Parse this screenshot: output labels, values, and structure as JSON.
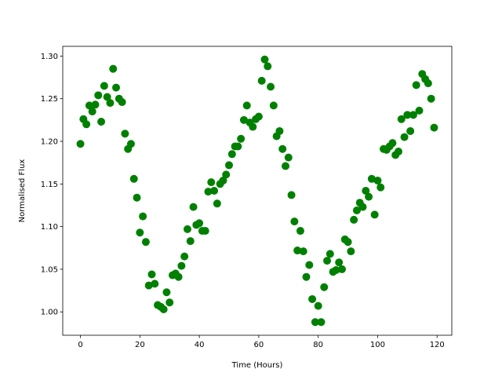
{
  "chart_data": {
    "type": "scatter",
    "title": "",
    "xlabel": "Time (Hours)",
    "ylabel": "Normalised Flux",
    "xlim": [
      -5.95,
      124.95
    ],
    "ylim": [
      0.9726,
      1.3114
    ],
    "xticks": [
      0,
      20,
      40,
      60,
      80,
      100,
      120
    ],
    "xtick_labels": [
      "0",
      "20",
      "40",
      "60",
      "80",
      "100",
      "120"
    ],
    "yticks": [
      1.0,
      1.05,
      1.1,
      1.15,
      1.2,
      1.25,
      1.3
    ],
    "ytick_labels": [
      "1.00",
      "1.05",
      "1.10",
      "1.15",
      "1.20",
      "1.25",
      "1.30"
    ],
    "grid": false,
    "marker_color": "#008000",
    "x": [
      0,
      1,
      2,
      3,
      4,
      5,
      6,
      7,
      8,
      9,
      10,
      11,
      12,
      13,
      14,
      15,
      16,
      17,
      18,
      19,
      20,
      21,
      22,
      23,
      24,
      25,
      26,
      27,
      28,
      29,
      30,
      31,
      32,
      33,
      34,
      35,
      36,
      37,
      38,
      39,
      40,
      41,
      42,
      43,
      44,
      45,
      46,
      47,
      48,
      49,
      50,
      51,
      52,
      53,
      54,
      55,
      56,
      57,
      58,
      59,
      60,
      61,
      62,
      63,
      64,
      65,
      66,
      67,
      68,
      69,
      70,
      71,
      72,
      73,
      74,
      75,
      76,
      77,
      78,
      79,
      80,
      81,
      82,
      83,
      84,
      85,
      86,
      87,
      88,
      89,
      90,
      91,
      92,
      93,
      94,
      95,
      96,
      97,
      98,
      99,
      100,
      101,
      102,
      103,
      104,
      105,
      106,
      107,
      108,
      109,
      110,
      111,
      112,
      113,
      114,
      115,
      116,
      117,
      118,
      119
    ],
    "y": [
      1.197,
      1.226,
      1.22,
      1.242,
      1.235,
      1.243,
      1.254,
      1.223,
      1.265,
      1.252,
      1.245,
      1.285,
      1.263,
      1.25,
      1.246,
      1.209,
      1.191,
      1.197,
      1.156,
      1.134,
      1.093,
      1.112,
      1.082,
      1.031,
      1.044,
      1.033,
      1.008,
      1.006,
      1.003,
      1.023,
      1.011,
      1.043,
      1.045,
      1.041,
      1.054,
      1.065,
      1.097,
      1.083,
      1.123,
      1.102,
      1.104,
      1.095,
      1.095,
      1.141,
      1.152,
      1.142,
      1.127,
      1.15,
      1.154,
      1.161,
      1.172,
      1.185,
      1.194,
      1.194,
      1.203,
      1.225,
      1.242,
      1.222,
      1.217,
      1.226,
      1.229,
      1.271,
      1.296,
      1.288,
      1.264,
      1.242,
      1.206,
      1.212,
      1.191,
      1.171,
      1.181,
      1.137,
      1.106,
      1.072,
      1.095,
      1.071,
      1.041,
      1.055,
      1.015,
      0.988,
      1.007,
      0.988,
      1.029,
      1.06,
      1.068,
      1.047,
      1.049,
      1.058,
      1.05,
      1.085,
      1.082,
      1.071,
      1.108,
      1.119,
      1.128,
      1.123,
      1.142,
      1.135,
      1.156,
      1.114,
      1.154,
      1.146,
      1.191,
      1.19,
      1.194,
      1.198,
      1.184,
      1.188,
      1.226,
      1.205,
      1.231,
      1.212,
      1.231,
      1.266,
      1.236,
      1.279,
      1.273,
      1.268,
      1.25,
      1.216
    ]
  }
}
